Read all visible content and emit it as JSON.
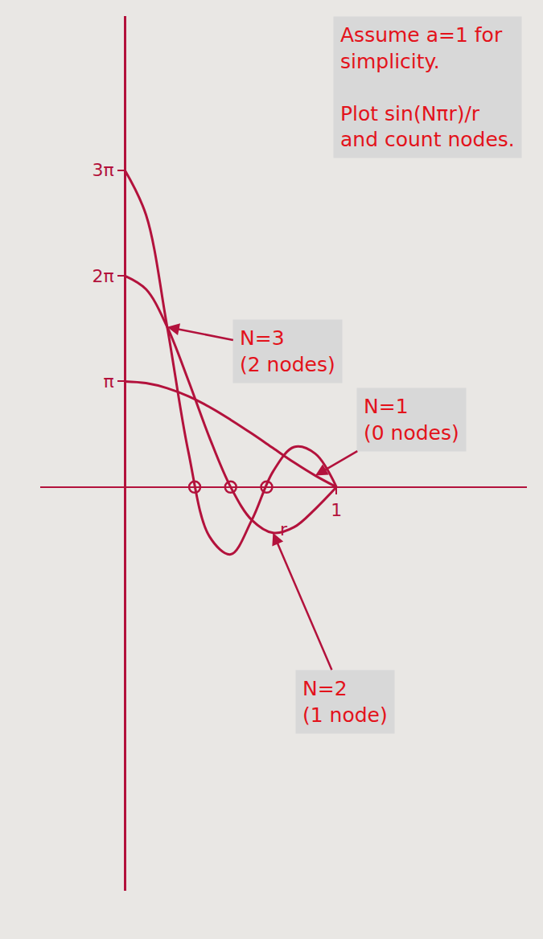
{
  "chart_data": {
    "type": "line",
    "notes": [
      "Assume a=1 for simplicity.",
      "Plot sin(Nπr)/r and count nodes."
    ],
    "xlabel": "r",
    "x": [
      0,
      0.1,
      0.2,
      0.3,
      0.4,
      0.5,
      0.6,
      0.7,
      0.8,
      0.9,
      1
    ],
    "series": [
      {
        "name": "N=1",
        "note": "(0 nodes)",
        "color": "#b3123c",
        "values": [
          3.14,
          3.09,
          2.94,
          2.7,
          2.38,
          2.0,
          1.59,
          1.16,
          0.73,
          0.34,
          0
        ]
      },
      {
        "name": "N=2",
        "note": "(1 node)",
        "color": "#b3123c",
        "values": [
          6.28,
          5.88,
          4.76,
          3.17,
          1.47,
          0,
          -0.98,
          -1.36,
          -1.19,
          -0.65,
          0
        ]
      },
      {
        "name": "N=3",
        "note": "(2 nodes)",
        "color": "#b3123c",
        "values": [
          9.42,
          8.09,
          4.76,
          1.05,
          -1.47,
          -2.0,
          -0.98,
          0.46,
          1.19,
          0.99,
          0
        ]
      }
    ],
    "nodes": {
      "x": [
        0.33,
        0.5,
        0.67
      ],
      "values": [
        0,
        0,
        0
      ],
      "marker": "circle-open",
      "color": "#b3123c"
    },
    "xlim": [
      -0.4,
      1.9
    ],
    "ylim": [
      -12,
      14
    ],
    "xticks": [
      1
    ],
    "yticks": [
      {
        "value": 3.14,
        "label": "π"
      },
      {
        "value": 6.28,
        "label": "2π"
      },
      {
        "value": 9.42,
        "label": "3π"
      }
    ],
    "grid": false
  }
}
